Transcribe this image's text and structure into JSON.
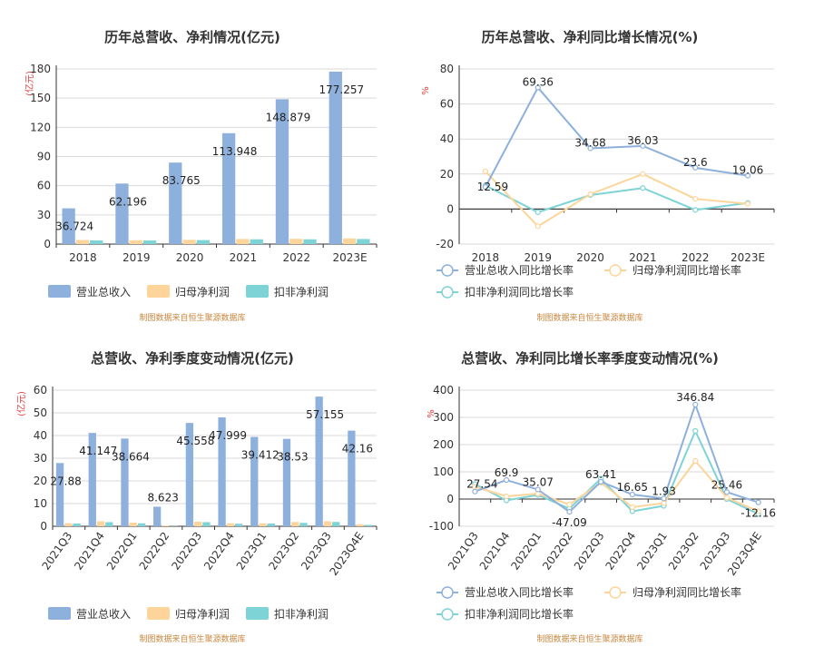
{
  "colors": {
    "revenue": "#8eb0dc",
    "net_profit": "#fdd59a",
    "deducted_profit": "#7ed3d6",
    "source": "#c8873f",
    "unit": "#e03b3b"
  },
  "chart_data": [
    {
      "type": "bar",
      "title": "历年总营收、净利情况(亿元)",
      "ylabel": "(亿元)",
      "categories": [
        "2018",
        "2019",
        "2020",
        "2021",
        "2022",
        "2023E"
      ],
      "ylim": [
        0,
        180
      ],
      "yticks": [
        0,
        30,
        60,
        90,
        120,
        150,
        180
      ],
      "series": [
        {
          "name": "营业总收入",
          "values": [
            36.724,
            62.196,
            83.765,
            113.948,
            148.879,
            177.257
          ],
          "labels": [
            "36.724",
            "62.196",
            "83.765",
            "113.948",
            "148.879",
            "177.257"
          ]
        },
        {
          "name": "归母净利润",
          "values": [
            4.2,
            3.9,
            4.4,
            5.2,
            5.4,
            5.8
          ]
        },
        {
          "name": "扣非净利润",
          "values": [
            3.8,
            3.7,
            4.1,
            4.9,
            4.9,
            5.2
          ]
        }
      ],
      "grid": true,
      "legend": "bottom",
      "source": "制图数据来自恒生聚源数据库"
    },
    {
      "type": "line",
      "title": "历年总营收、净利同比增长情况(%)",
      "ylabel": "%",
      "categories": [
        "2018",
        "2019",
        "2020",
        "2021",
        "2022",
        "2023E"
      ],
      "ylim": [
        -20,
        80
      ],
      "yticks": [
        -20,
        0,
        20,
        40,
        60,
        80
      ],
      "series": [
        {
          "name": "营业总收入同比增长率",
          "values": [
            12.59,
            69.36,
            34.68,
            36.03,
            23.6,
            19.06
          ],
          "labels": [
            "12.59",
            "69.36",
            "34.68",
            "36.03",
            "23.6",
            "19.06"
          ]
        },
        {
          "name": "归母净利润同比增长率",
          "values": [
            21.5,
            -9.8,
            8.5,
            20.0,
            5.8,
            3.0
          ]
        },
        {
          "name": "扣非净利润同比增长率",
          "values": [
            13.5,
            -1.8,
            8.0,
            12.0,
            -0.5,
            3.5
          ]
        }
      ],
      "grid": true,
      "legend": "bottom",
      "source": "制图数据来自恒生聚源数据库"
    },
    {
      "type": "bar",
      "title": "总营收、净利季度变动情况(亿元)",
      "ylabel": "(亿元)",
      "categories": [
        "2021Q3",
        "2021Q4",
        "2022Q1",
        "2022Q2",
        "2022Q3",
        "2022Q4",
        "2023Q1",
        "2023Q2",
        "2023Q3",
        "2023Q4E"
      ],
      "ylim": [
        0,
        60
      ],
      "yticks": [
        0,
        10,
        20,
        30,
        40,
        50,
        60
      ],
      "series": [
        {
          "name": "营业总收入",
          "values": [
            27.88,
            41.147,
            38.664,
            8.623,
            45.558,
            47.999,
            39.412,
            38.53,
            57.155,
            42.16
          ],
          "labels": [
            "27.88",
            "41.147",
            "38.664",
            "8.623",
            "45.558",
            "47.999",
            "39.412",
            "38.53",
            "57.155",
            "42.16"
          ]
        },
        {
          "name": "归母净利润",
          "values": [
            1.3,
            2.2,
            1.6,
            0.3,
            2.0,
            1.3,
            1.3,
            1.9,
            2.2,
            0.9
          ]
        },
        {
          "name": "扣非净利润",
          "values": [
            1.2,
            1.8,
            1.3,
            0.1,
            1.8,
            1.1,
            1.2,
            1.5,
            1.9,
            0.6
          ]
        }
      ],
      "grid": true,
      "legend": "bottom",
      "source": "制图数据来自恒生聚源数据库"
    },
    {
      "type": "line",
      "title": "总营收、净利同比增长率季度变动情况(%)",
      "ylabel": "%",
      "categories": [
        "2021Q3",
        "2021Q4",
        "2022Q1",
        "2022Q2",
        "2022Q3",
        "2022Q4",
        "2023Q1",
        "2023Q2",
        "2023Q3",
        "2023Q4E"
      ],
      "ylim": [
        -100,
        400
      ],
      "yticks": [
        -100,
        0,
        100,
        200,
        300,
        400
      ],
      "series": [
        {
          "name": "营业总收入同比增长率",
          "values": [
            27.54,
            69.9,
            35.07,
            -47.09,
            63.41,
            16.65,
            1.93,
            346.84,
            25.46,
            -12.16
          ],
          "labels": [
            "27.54",
            "69.9",
            "35.07",
            "-47.09",
            "63.41",
            "16.65",
            "1.93",
            "346.84",
            "25.46",
            "-12.16"
          ]
        },
        {
          "name": "归母净利润同比增长率",
          "values": [
            45,
            10,
            20,
            -20,
            60,
            -30,
            -15,
            140,
            5,
            -45
          ]
        },
        {
          "name": "扣非净利润同比增长率",
          "values": [
            55,
            -5,
            15,
            -35,
            75,
            -45,
            -25,
            250,
            0,
            -55
          ]
        }
      ],
      "grid": true,
      "legend": "bottom",
      "source": "制图数据来自恒生聚源数据库"
    }
  ]
}
